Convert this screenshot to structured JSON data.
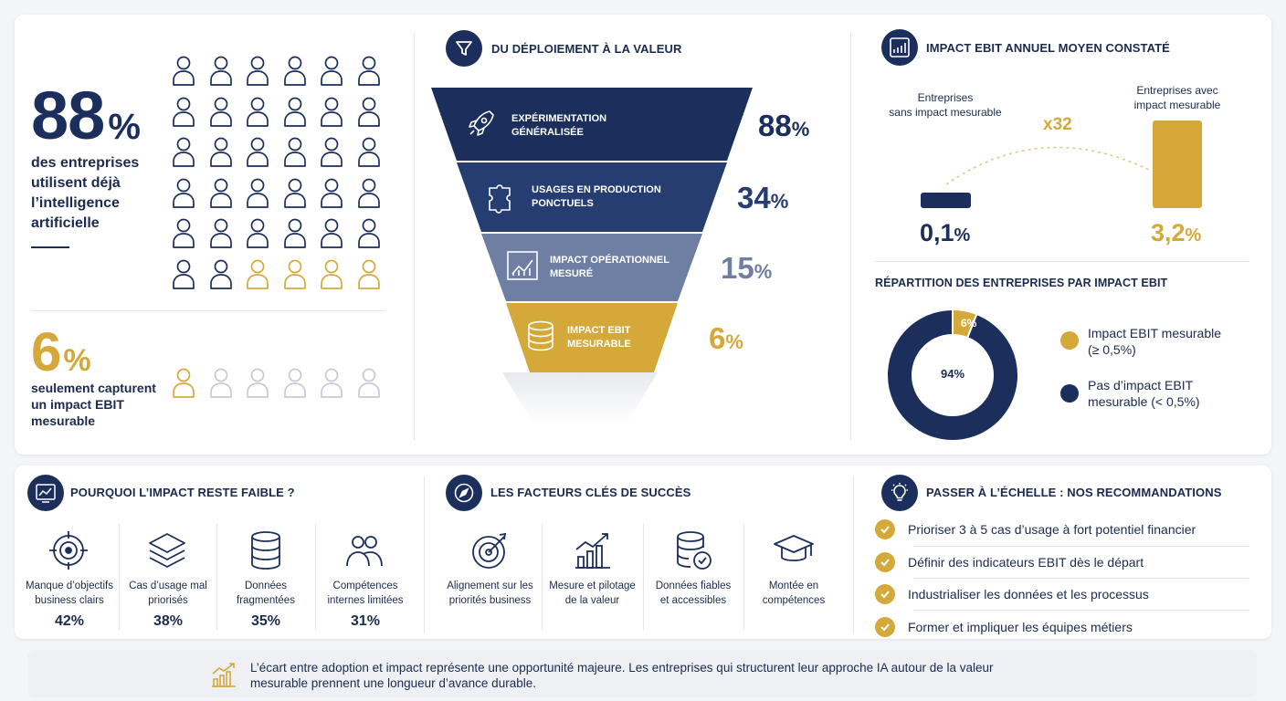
{
  "adoption": {
    "value": "88",
    "pct": "%",
    "description": [
      "des entreprises",
      "utilisent déjà",
      "l’intelligence",
      "artificielle"
    ]
  },
  "impact": {
    "value": "6",
    "pct": "%",
    "description": [
      "seulement capturent",
      "un impact EBIT",
      "mesurable"
    ]
  },
  "icon_grid": {
    "rows": 6,
    "cols": 6,
    "gold_last_row": 4,
    "colors": {
      "navy": "#1b2e5c",
      "gold": "#d4a93a",
      "grey": "#c6cad3"
    },
    "icon": "person-icon"
  },
  "icon_row_bottom": {
    "count": 6,
    "gold": 1
  },
  "funnel": {
    "title": "DU DÉPLOIEMENT À LA VALEUR",
    "icon": "funnel-icon",
    "stages": [
      {
        "label": [
          "EXPÉRIMENTATION",
          "GÉNÉRALISÉE"
        ],
        "value": "88",
        "pct": "%",
        "icon": "rocket-icon",
        "color": "#1b2e5c",
        "value_color": "#1b2e5c"
      },
      {
        "label": [
          "USAGES EN PRODUCTION",
          "PONCTUELS"
        ],
        "value": "34",
        "pct": "%",
        "icon": "puzzle-icon",
        "color": "#263d72",
        "value_color": "#263d72"
      },
      {
        "label": [
          "IMPACT OPÉRATIONNEL",
          "MESURÉ"
        ],
        "value": "15",
        "pct": "%",
        "icon": "chart-icon",
        "color": "#6f7fa3",
        "value_color": "#6f7fa3"
      },
      {
        "label": [
          "IMPACT EBIT",
          "MESURABLE"
        ],
        "value": "6",
        "pct": "%",
        "icon": "database-icon",
        "color": "#d4a93a",
        "value_color": "#d4a93a"
      }
    ]
  },
  "ebit": {
    "title": "IMPACT EBIT ANNUEL MOYEN CONSTATÉ",
    "icon": "bar-chart-icon",
    "left_label": [
      "Entreprises",
      "sans impact mesurable"
    ],
    "right_label": [
      "Entreprises avec",
      "impact mesurable"
    ],
    "multiplier": "x32",
    "left_value": "0,1",
    "right_value": "3,2",
    "pct": "%"
  },
  "repartition": {
    "title": "RÉPARTITION DES ENTREPRISES PAR IMPACT EBIT",
    "slice_small_label": "6%",
    "slice_large_label": "94%",
    "legend": [
      {
        "label": [
          "Impact EBIT mesurable",
          "(≥ 0,5%)"
        ],
        "color": "#d4a93a"
      },
      {
        "label": [
          "Pas d’impact EBIT",
          "mesurable (< 0,5%)"
        ],
        "color": "#1b2e5c"
      }
    ]
  },
  "chart_data": {
    "type": "pie",
    "categories": [
      "Impact EBIT mesurable (≥ 0,5%)",
      "Pas d’impact EBIT mesurable (< 0,5%)"
    ],
    "values": [
      6,
      94
    ],
    "title": "RÉPARTITION DES ENTREPRISES PAR IMPACT EBIT",
    "colors": [
      "#d4a93a",
      "#1b2e5c"
    ],
    "legend": "right"
  },
  "why": {
    "title": "POURQUOI L’IMPACT RESTE FAIBLE ?",
    "icon": "analytics-icon",
    "items": [
      {
        "label": [
          "Manque d’objectifs",
          "business clairs"
        ],
        "pct": "42%",
        "icon": "target-icon"
      },
      {
        "label": [
          "Cas d’usage mal",
          "priorisés"
        ],
        "pct": "38%",
        "icon": "layers-icon"
      },
      {
        "label": [
          "Données",
          "fragmentées"
        ],
        "pct": "35%",
        "icon": "database-icon"
      },
      {
        "label": [
          "Compétences",
          "internes limitées"
        ],
        "pct": "31%",
        "icon": "team-icon"
      }
    ]
  },
  "success": {
    "title": "LES FACTEURS CLÉS DE SUCCÈS",
    "icon": "compass-icon",
    "items": [
      {
        "label": [
          "Alignement sur les",
          "priorités business"
        ],
        "icon": "target-arrow-icon"
      },
      {
        "label": [
          "Mesure et pilotage",
          "de la valeur"
        ],
        "icon": "growth-chart-icon"
      },
      {
        "label": [
          "Données fiables",
          "et accessibles"
        ],
        "icon": "verified-database-icon"
      },
      {
        "label": [
          "Montée en",
          "compétences"
        ],
        "icon": "graduation-cap-icon"
      }
    ]
  },
  "reco": {
    "title": "PASSER À L’ÉCHELLE : NOS RECOMMANDATIONS",
    "icon": "lightbulb-icon",
    "items": [
      "Prioriser 3 à 5 cas d’usage à fort potentiel financier",
      "Définir des indicateurs EBIT dès le départ",
      "Industrialiser les données et les processus",
      "Former et impliquer les équipes métiers"
    ]
  },
  "footer": {
    "icon": "growth-icon",
    "text": [
      "L’écart entre adoption et impact représente une opportunité majeure. Les entreprises qui structurent leur approche IA autour de la valeur",
      "mesurable prennent une longueur d’avance durable."
    ]
  }
}
